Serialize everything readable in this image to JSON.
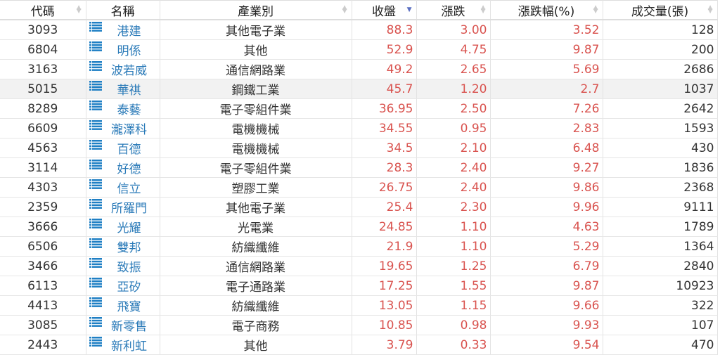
{
  "columns": [
    {
      "label": "代碼",
      "sort": "none"
    },
    {
      "label": "名稱",
      "sort": ""
    },
    {
      "label": "產業別",
      "sort": "none"
    },
    {
      "label": "收盤",
      "sort": "desc"
    },
    {
      "label": "漲跌",
      "sort": "none"
    },
    {
      "label": "漲跌幅(%)",
      "sort": "none"
    },
    {
      "label": "成交量(張)",
      "sort": "none"
    }
  ],
  "colors": {
    "up": "#d9534f",
    "name": "#2a7ab8",
    "icon": "#1f7fc4",
    "highlight": "#f2f2f2"
  },
  "rows": [
    {
      "code": "3093",
      "name": "港建",
      "industry": "其他電子業",
      "close": "88.3",
      "change": "3.00",
      "pct": "3.52",
      "volume": "128"
    },
    {
      "code": "6804",
      "name": "明係",
      "industry": "其他",
      "close": "52.9",
      "change": "4.75",
      "pct": "9.87",
      "volume": "200"
    },
    {
      "code": "3163",
      "name": "波若威",
      "industry": "通信網路業",
      "close": "49.2",
      "change": "2.65",
      "pct": "5.69",
      "volume": "2686"
    },
    {
      "code": "5015",
      "name": "華祺",
      "industry": "鋼鐵工業",
      "close": "45.7",
      "change": "1.20",
      "pct": "2.7",
      "volume": "1037",
      "highlighted": true
    },
    {
      "code": "8289",
      "name": "泰藝",
      "industry": "電子零組件業",
      "close": "36.95",
      "change": "2.50",
      "pct": "7.26",
      "volume": "2642"
    },
    {
      "code": "6609",
      "name": "瀧澤科",
      "industry": "電機機械",
      "close": "34.55",
      "change": "0.95",
      "pct": "2.83",
      "volume": "1593"
    },
    {
      "code": "4563",
      "name": "百德",
      "industry": "電機機械",
      "close": "34.5",
      "change": "2.10",
      "pct": "6.48",
      "volume": "430"
    },
    {
      "code": "3114",
      "name": "好德",
      "industry": "電子零組件業",
      "close": "28.3",
      "change": "2.40",
      "pct": "9.27",
      "volume": "1836"
    },
    {
      "code": "4303",
      "name": "信立",
      "industry": "塑膠工業",
      "close": "26.75",
      "change": "2.40",
      "pct": "9.86",
      "volume": "2368"
    },
    {
      "code": "2359",
      "name": "所羅門",
      "industry": "其他電子業",
      "close": "25.4",
      "change": "2.30",
      "pct": "9.96",
      "volume": "9111"
    },
    {
      "code": "3666",
      "name": "光耀",
      "industry": "光電業",
      "close": "24.85",
      "change": "1.10",
      "pct": "4.63",
      "volume": "1789"
    },
    {
      "code": "6506",
      "name": "雙邦",
      "industry": "紡織纖維",
      "close": "21.9",
      "change": "1.10",
      "pct": "5.29",
      "volume": "1364"
    },
    {
      "code": "3466",
      "name": "致振",
      "industry": "通信網路業",
      "close": "19.65",
      "change": "1.25",
      "pct": "6.79",
      "volume": "2840"
    },
    {
      "code": "6113",
      "name": "亞矽",
      "industry": "電子通路業",
      "close": "17.25",
      "change": "1.55",
      "pct": "9.87",
      "volume": "10923"
    },
    {
      "code": "4413",
      "name": "飛寶",
      "industry": "紡織纖維",
      "close": "13.05",
      "change": "1.15",
      "pct": "9.66",
      "volume": "322"
    },
    {
      "code": "3085",
      "name": "新零售",
      "industry": "電子商務",
      "close": "10.85",
      "change": "0.98",
      "pct": "9.93",
      "volume": "107"
    },
    {
      "code": "2443",
      "name": "新利虹",
      "industry": "其他",
      "close": "3.79",
      "change": "0.33",
      "pct": "9.54",
      "volume": "470"
    }
  ]
}
